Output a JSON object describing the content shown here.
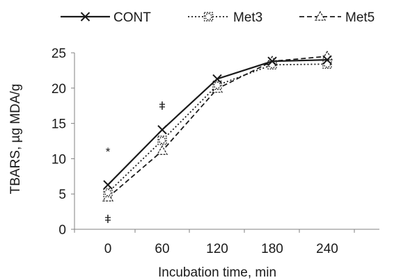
{
  "chart_data": {
    "type": "line",
    "title": "",
    "xlabel": "Incubation time, min",
    "ylabel": "TBARS, µg MDA/g",
    "categories": [
      "0",
      "60",
      "120",
      "180",
      "240"
    ],
    "x": [
      0,
      60,
      120,
      180,
      240
    ],
    "ylim": [
      0,
      25
    ],
    "yticks": [
      "0",
      "5",
      "10",
      "15",
      "20",
      "25"
    ],
    "grid": false,
    "legend_position": "top",
    "series": [
      {
        "name": "CONT",
        "values": [
          6.3,
          14.1,
          21.3,
          23.8,
          24.0
        ],
        "marker": "x",
        "line": "solid",
        "color": "#1a1a1a"
      },
      {
        "name": "Met3",
        "values": [
          5.2,
          12.6,
          20.4,
          23.3,
          23.4
        ],
        "marker": "square-circle",
        "line": "dotted",
        "color": "#1a1a1a"
      },
      {
        "name": "Met5",
        "values": [
          4.5,
          11.1,
          19.9,
          23.8,
          24.5
        ],
        "marker": "triangle",
        "line": "dashed",
        "color": "#1a1a1a"
      }
    ],
    "annotations": [
      {
        "text": "*",
        "x": 0,
        "y": 11.0
      },
      {
        "text": "ǂ",
        "x": 0,
        "y": 1.5
      },
      {
        "text": "ǂ",
        "x": 60,
        "y": 17.5
      }
    ]
  }
}
